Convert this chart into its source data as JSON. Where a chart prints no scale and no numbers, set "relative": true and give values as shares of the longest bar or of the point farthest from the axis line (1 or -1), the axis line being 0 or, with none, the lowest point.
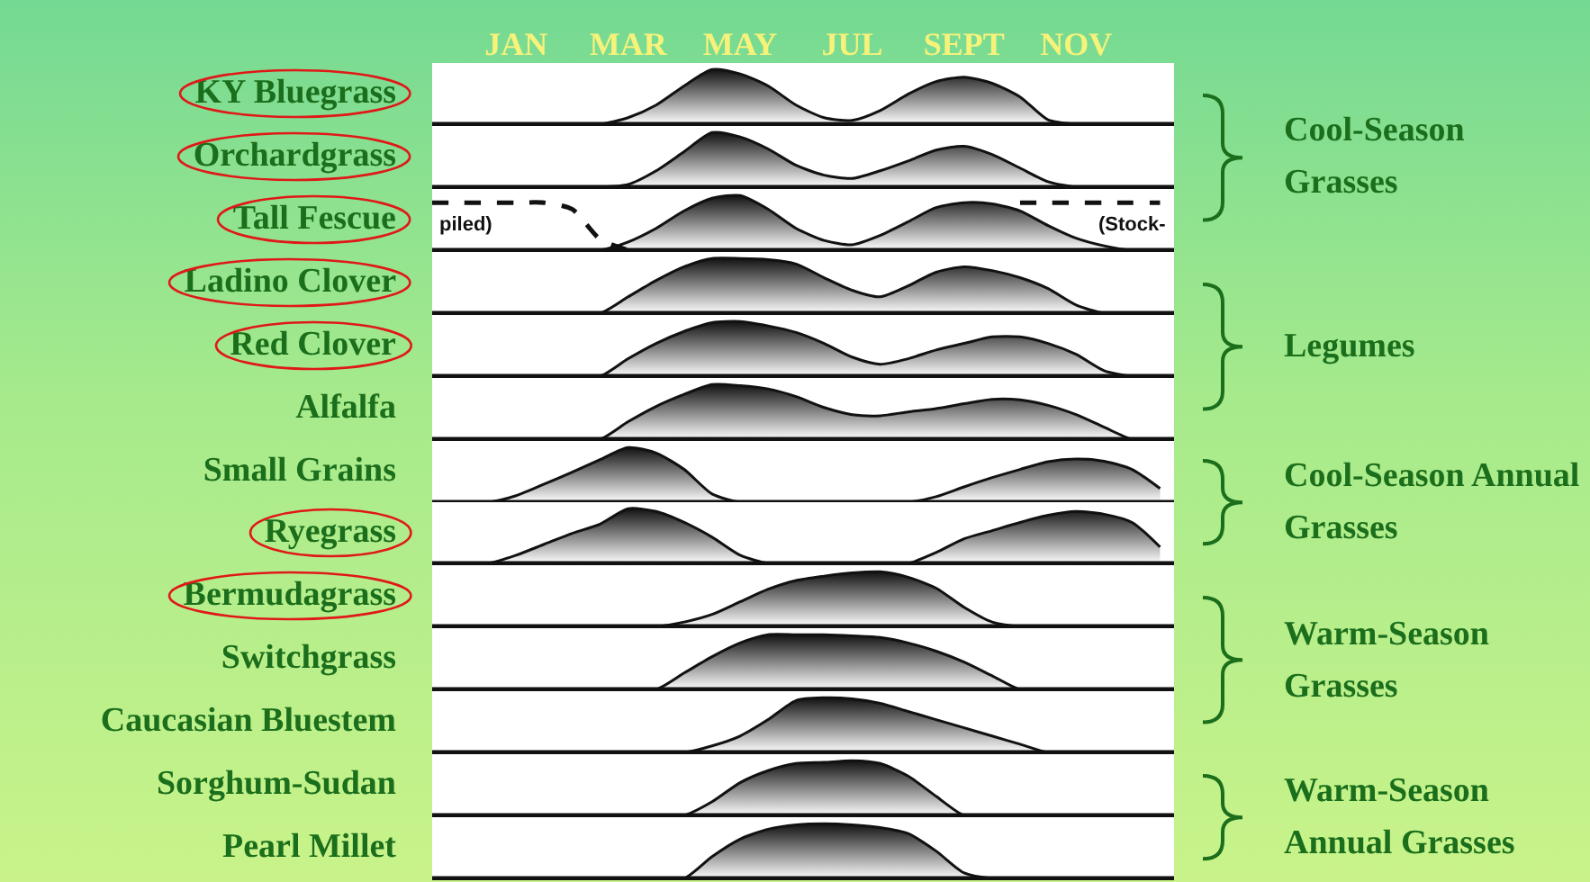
{
  "chart_data": [
    {
      "type": "area",
      "ylabel": "KY Bluegrass",
      "y2label": "Cool-Season Grasses",
      "relative": true,
      "tick_labels": "x",
      "categories": [
        null,
        null,
        null,
        "JAN",
        null,
        null,
        null,
        "MAR",
        null,
        null,
        null,
        "MAY",
        null,
        null,
        null,
        "JUL",
        null,
        null,
        null,
        "SEPT",
        null,
        null,
        null,
        "NOV",
        null,
        null,
        null
      ],
      "series": [
        {
          "color": "#111111",
          "values": [
            0,
            0,
            0,
            0,
            0,
            0,
            0,
            0.12,
            0.35,
            0.7,
            1,
            0.92,
            0.7,
            0.35,
            0.12,
            0.07,
            0.25,
            0.55,
            0.78,
            0.86,
            0.75,
            0.5,
            0.08,
            0,
            0,
            0,
            0
          ]
        }
      ]
    },
    {
      "type": "area",
      "ylabel": "Orchardgrass",
      "relative": true,
      "tick_labels": false,
      "categories": [
        null,
        null,
        null,
        null,
        null,
        null,
        null,
        null,
        null,
        null,
        null,
        null,
        null,
        null,
        null,
        null,
        null,
        null,
        null,
        null,
        null,
        null,
        null,
        null,
        null,
        null,
        null
      ],
      "series": [
        {
          "color": "#111111",
          "values": [
            0,
            0,
            0,
            0,
            0,
            0,
            0,
            0.05,
            0.3,
            0.65,
            1,
            0.92,
            0.7,
            0.4,
            0.22,
            0.16,
            0.3,
            0.48,
            0.68,
            0.75,
            0.6,
            0.35,
            0.1,
            0,
            0,
            0,
            0
          ]
        }
      ]
    },
    {
      "type": "area",
      "ylabel": "Tall Fescue",
      "relative": true,
      "tick_labels": false,
      "annotations": [
        "piled)",
        "(Stock-"
      ],
      "categories": [
        null,
        null,
        null,
        null,
        null,
        null,
        null,
        null,
        null,
        null,
        null,
        null,
        null,
        null,
        null,
        null,
        null,
        null,
        null,
        null,
        null,
        null,
        null,
        null,
        null,
        null,
        null
      ],
      "series": [
        {
          "color": "#111111",
          "values": [
            0,
            0,
            0,
            0,
            0,
            0,
            0,
            0.15,
            0.4,
            0.72,
            0.95,
            1,
            0.75,
            0.4,
            0.18,
            0.1,
            0.27,
            0.52,
            0.78,
            0.87,
            0.85,
            0.72,
            0.45,
            0.22,
            0.08,
            0,
            0
          ]
        },
        {
          "type": "line",
          "line_style": "dashed",
          "color": "#111111",
          "values": [
            0.87,
            0.87,
            0.87,
            0.87,
            0.87,
            0.75,
            0.2,
            0,
            null,
            null,
            null,
            null,
            null,
            null,
            null,
            null,
            null,
            null,
            null,
            null,
            null,
            0.87,
            0.87,
            0.87,
            0.87,
            0.87,
            0.87
          ]
        }
      ]
    },
    {
      "type": "area",
      "ylabel": "Ladino Clover",
      "y2label": "Legumes",
      "relative": true,
      "tick_labels": false,
      "categories": [
        null,
        null,
        null,
        null,
        null,
        null,
        null,
        null,
        null,
        null,
        null,
        null,
        null,
        null,
        null,
        null,
        null,
        null,
        null,
        null,
        null,
        null,
        null,
        null,
        null,
        null,
        null
      ],
      "series": [
        {
          "color": "#111111",
          "values": [
            0,
            0,
            0,
            0,
            0,
            0,
            0,
            0.3,
            0.6,
            0.85,
            1,
            1,
            0.98,
            0.9,
            0.65,
            0.42,
            0.3,
            0.5,
            0.75,
            0.85,
            0.78,
            0.65,
            0.45,
            0.15,
            0,
            0,
            0
          ]
        }
      ]
    },
    {
      "type": "area",
      "ylabel": "Red Clover",
      "relative": true,
      "tick_labels": false,
      "categories": [
        null,
        null,
        null,
        null,
        null,
        null,
        null,
        null,
        null,
        null,
        null,
        null,
        null,
        null,
        null,
        null,
        null,
        null,
        null,
        null,
        null,
        null,
        null,
        null,
        null,
        null,
        null
      ],
      "series": [
        {
          "color": "#111111",
          "values": [
            0,
            0,
            0,
            0,
            0,
            0,
            0,
            0.32,
            0.6,
            0.82,
            0.98,
            1,
            0.92,
            0.8,
            0.6,
            0.35,
            0.22,
            0.32,
            0.48,
            0.6,
            0.72,
            0.72,
            0.6,
            0.4,
            0.1,
            0,
            0
          ]
        }
      ]
    },
    {
      "type": "area",
      "ylabel": "Alfalfa",
      "relative": true,
      "tick_labels": false,
      "categories": [
        null,
        null,
        null,
        null,
        null,
        null,
        null,
        null,
        null,
        null,
        null,
        null,
        null,
        null,
        null,
        null,
        null,
        null,
        null,
        null,
        null,
        null,
        null,
        null,
        null,
        null,
        null
      ],
      "series": [
        {
          "color": "#111111",
          "values": [
            0,
            0,
            0,
            0,
            0,
            0,
            0,
            0.32,
            0.6,
            0.82,
            1,
            0.98,
            0.92,
            0.78,
            0.58,
            0.45,
            0.43,
            0.5,
            0.56,
            0.65,
            0.73,
            0.72,
            0.62,
            0.45,
            0.22,
            0,
            0
          ]
        }
      ]
    },
    {
      "type": "area",
      "ylabel": "Small Grains",
      "y2label": "Cool-Season Annual Grasses",
      "relative": true,
      "tick_labels": false,
      "categories": [
        null,
        null,
        null,
        null,
        null,
        null,
        null,
        null,
        null,
        null,
        null,
        null,
        null,
        null,
        null,
        null,
        null,
        null,
        null,
        null,
        null,
        null,
        null,
        null,
        null,
        null,
        null
      ],
      "series": [
        {
          "color": "#111111",
          "values": [
            0,
            0,
            0,
            0.12,
            0.33,
            0.55,
            0.78,
            1,
            0.9,
            0.6,
            0.15,
            0,
            0,
            0,
            0,
            0,
            0,
            0,
            0.1,
            0.28,
            0.45,
            0.6,
            0.74,
            0.79,
            0.75,
            0.6,
            0.25
          ]
        }
      ]
    },
    {
      "type": "area",
      "ylabel": "Ryegrass",
      "relative": true,
      "tick_labels": false,
      "categories": [
        null,
        null,
        null,
        null,
        null,
        null,
        null,
        null,
        null,
        null,
        null,
        null,
        null,
        null,
        null,
        null,
        null,
        null,
        null,
        null,
        null,
        null,
        null,
        null,
        null,
        null,
        null
      ],
      "series": [
        {
          "color": "#111111",
          "values": [
            0,
            0,
            0,
            0.15,
            0.35,
            0.55,
            0.72,
            1,
            0.95,
            0.75,
            0.48,
            0.15,
            0,
            0,
            0,
            0,
            0,
            0,
            0.2,
            0.45,
            0.6,
            0.75,
            0.88,
            0.95,
            0.9,
            0.75,
            0.3
          ]
        }
      ]
    },
    {
      "type": "area",
      "ylabel": "Bermudagrass",
      "y2label": "Warm-Season Grasses",
      "relative": true,
      "tick_labels": false,
      "categories": [
        null,
        null,
        null,
        null,
        null,
        null,
        null,
        null,
        null,
        null,
        null,
        null,
        null,
        null,
        null,
        null,
        null,
        null,
        null,
        null,
        null,
        null,
        null,
        null,
        null,
        null,
        null
      ],
      "series": [
        {
          "color": "#111111",
          "values": [
            0,
            0,
            0,
            0,
            0,
            0,
            0,
            0,
            0,
            0.08,
            0.22,
            0.45,
            0.68,
            0.84,
            0.92,
            0.98,
            1,
            0.9,
            0.7,
            0.35,
            0.08,
            0,
            0,
            0,
            0,
            0,
            0
          ]
        }
      ]
    },
    {
      "type": "area",
      "ylabel": "Switchgrass",
      "relative": true,
      "tick_labels": false,
      "categories": [
        null,
        null,
        null,
        null,
        null,
        null,
        null,
        null,
        null,
        null,
        null,
        null,
        null,
        null,
        null,
        null,
        null,
        null,
        null,
        null,
        null,
        null,
        null,
        null,
        null,
        null,
        null
      ],
      "series": [
        {
          "color": "#111111",
          "values": [
            0,
            0,
            0,
            0,
            0,
            0,
            0,
            0,
            0,
            0.3,
            0.6,
            0.85,
            1,
            1,
            1,
            0.98,
            0.95,
            0.85,
            0.7,
            0.5,
            0.25,
            0,
            0,
            0,
            0,
            0,
            0
          ]
        }
      ]
    },
    {
      "type": "area",
      "ylabel": "Caucasian Bluestem",
      "relative": true,
      "tick_labels": false,
      "categories": [
        null,
        null,
        null,
        null,
        null,
        null,
        null,
        null,
        null,
        null,
        null,
        null,
        null,
        null,
        null,
        null,
        null,
        null,
        null,
        null,
        null,
        null,
        null,
        null,
        null,
        null,
        null
      ],
      "series": [
        {
          "color": "#111111",
          "values": [
            0,
            0,
            0,
            0,
            0,
            0,
            0,
            0,
            0,
            0,
            0.12,
            0.3,
            0.6,
            0.95,
            1,
            0.98,
            0.9,
            0.75,
            0.6,
            0.45,
            0.3,
            0.15,
            0,
            0,
            0,
            0,
            0
          ]
        }
      ]
    },
    {
      "type": "area",
      "ylabel": "Sorghum-Sudan",
      "y2label": "Warm-Season Annual Grasses",
      "relative": true,
      "tick_labels": false,
      "categories": [
        null,
        null,
        null,
        null,
        null,
        null,
        null,
        null,
        null,
        null,
        null,
        null,
        null,
        null,
        null,
        null,
        null,
        null,
        null,
        null,
        null,
        null,
        null,
        null,
        null,
        null,
        null
      ],
      "series": [
        {
          "color": "#111111",
          "values": [
            0,
            0,
            0,
            0,
            0,
            0,
            0,
            0,
            0,
            0,
            0.25,
            0.6,
            0.82,
            0.95,
            0.97,
            1,
            0.95,
            0.72,
            0.35,
            0,
            0,
            0,
            0,
            0,
            0,
            0,
            0
          ]
        }
      ]
    },
    {
      "type": "area",
      "ylabel": "Pearl Millet",
      "relative": true,
      "tick_labels": false,
      "categories": [
        null,
        null,
        null,
        null,
        null,
        null,
        null,
        null,
        null,
        null,
        null,
        null,
        null,
        null,
        null,
        null,
        null,
        null,
        null,
        null,
        null,
        null,
        null,
        null,
        null,
        null,
        null
      ],
      "series": [
        {
          "color": "#111111",
          "values": [
            0,
            0,
            0,
            0,
            0,
            0,
            0,
            0,
            0,
            0,
            0.4,
            0.72,
            0.9,
            0.98,
            1,
            0.98,
            0.93,
            0.82,
            0.5,
            0.1,
            0,
            0,
            0,
            0,
            0,
            0,
            0
          ]
        }
      ]
    }
  ]
}
